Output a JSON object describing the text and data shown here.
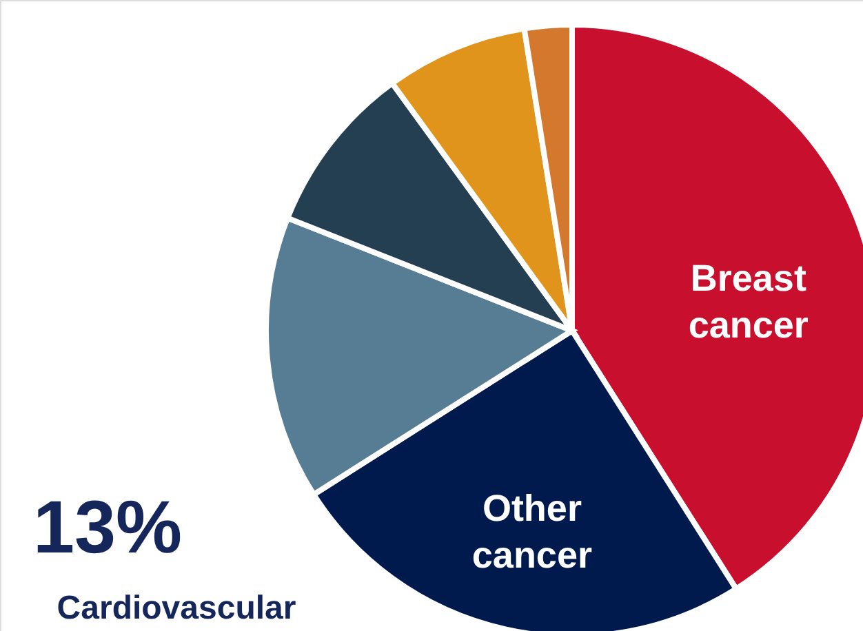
{
  "chart_data": {
    "type": "pie",
    "categories": [
      "Breast cancer",
      "Other cancer",
      null,
      null,
      null,
      null
    ],
    "values": [
      41,
      25,
      15,
      9,
      7.5,
      2.5
    ],
    "colors": [
      "#c8102e",
      "#001a4e",
      "#577d94",
      "#253f52",
      "#e0941c",
      "#d4782e"
    ],
    "annotations": [
      "13%",
      "Cardiovascular"
    ]
  }
}
